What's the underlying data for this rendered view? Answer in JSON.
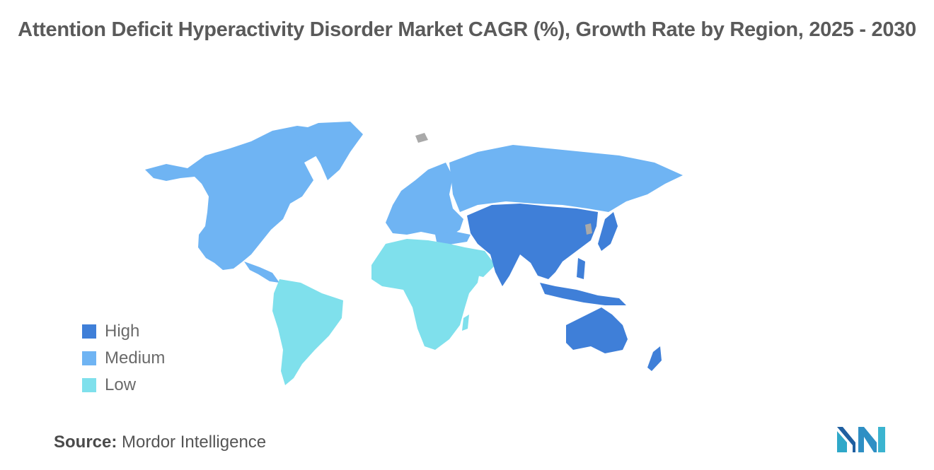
{
  "title": "Attention Deficit Hyperactivity Disorder Market CAGR (%), Growth Rate by Region, 2025 - 2030",
  "legend": [
    {
      "label": "High",
      "color": "#3f7fd8"
    },
    {
      "label": "Medium",
      "color": "#6fb4f3"
    },
    {
      "label": "Low",
      "color": "#7fe0ec"
    }
  ],
  "regions": [
    {
      "name": "North America",
      "level": "Medium"
    },
    {
      "name": "Europe",
      "level": "Medium"
    },
    {
      "name": "Asia Pacific",
      "level": "High"
    },
    {
      "name": "South America",
      "level": "Low"
    },
    {
      "name": "Middle East and Africa",
      "level": "Low"
    }
  ],
  "source": {
    "label": "Source:",
    "text": "Mordor Intelligence"
  },
  "colors": {
    "no_data": "#a9a9a9"
  },
  "logo_icon": "mordor-intelligence-logo-icon"
}
